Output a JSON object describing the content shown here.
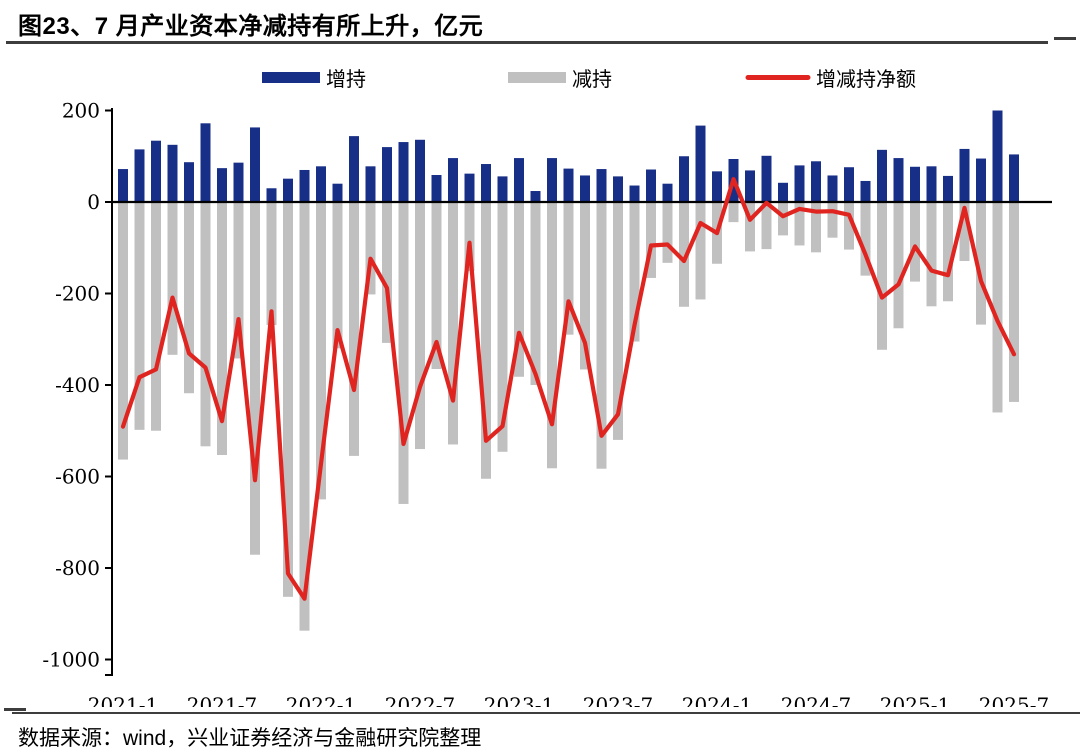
{
  "title": "图23、7 月产业资本净减持有所上升，亿元",
  "footer": {
    "source_text": "数据来源：wind，兴业证券经济与金融研究院整理"
  },
  "colors": {
    "increase_bar": "#182F87",
    "decrease_bar": "#C0C0C0",
    "net_line": "#E02521",
    "axis": "#000000",
    "rule": "#3d3d3d"
  },
  "legend": [
    {
      "label": "增持",
      "type": "bar",
      "color": "#182F87"
    },
    {
      "label": "减持",
      "type": "bar",
      "color": "#C0C0C0"
    },
    {
      "label": "增减持净额",
      "type": "line",
      "color": "#E02521"
    }
  ],
  "chart_data": {
    "type": "bar",
    "subtype": "bar+line combo, monthly",
    "unit": "亿元",
    "title": "图23、7 月产业资本净减持有所上升，亿元",
    "xlabel": "",
    "ylabel": "",
    "ylim": [
      -1000,
      200
    ],
    "y_ticks": [
      200,
      0,
      -200,
      -400,
      -600,
      -800,
      -1000
    ],
    "x_tick_labels": [
      "2021-1",
      "2021-7",
      "2022-1",
      "2022-7",
      "2023-1",
      "2023-7",
      "2024-1",
      "2024-7",
      "2025-1",
      "2025-7"
    ],
    "grid": false,
    "legend_position": "top",
    "x": [
      "2021-1",
      "2021-2",
      "2021-3",
      "2021-4",
      "2021-5",
      "2021-6",
      "2021-7",
      "2021-8",
      "2021-9",
      "2021-10",
      "2021-11",
      "2021-12",
      "2022-1",
      "2022-2",
      "2022-3",
      "2022-4",
      "2022-5",
      "2022-6",
      "2022-7",
      "2022-8",
      "2022-9",
      "2022-10",
      "2022-11",
      "2022-12",
      "2023-1",
      "2023-2",
      "2023-3",
      "2023-4",
      "2023-5",
      "2023-6",
      "2023-7",
      "2023-8",
      "2023-9",
      "2023-10",
      "2023-11",
      "2023-12",
      "2024-1",
      "2024-2",
      "2024-3",
      "2024-4",
      "2024-5",
      "2024-6",
      "2024-7",
      "2024-8",
      "2024-9",
      "2024-10",
      "2024-11",
      "2024-12",
      "2025-1",
      "2025-2",
      "2025-3",
      "2025-4",
      "2025-5",
      "2025-6",
      "2025-7"
    ],
    "series": [
      {
        "name": "增持",
        "type": "bar",
        "color": "#182F87",
        "values": [
          72,
          115,
          134,
          125,
          87,
          172,
          74,
          86,
          163,
          30,
          51,
          70,
          78,
          40,
          144,
          78,
          120,
          131,
          136,
          59,
          96,
          62,
          83,
          56,
          96,
          24,
          96,
          73,
          58,
          72,
          56,
          36,
          71,
          40,
          100,
          167,
          67,
          94,
          69,
          101,
          42,
          80,
          89,
          58,
          76,
          46,
          114,
          96,
          77,
          78,
          57,
          116,
          95,
          200,
          104
        ]
      },
      {
        "name": "减持",
        "type": "bar",
        "color": "#C0C0C0",
        "values": [
          -563,
          -498,
          -500,
          -334,
          -418,
          -534,
          -553,
          -342,
          -771,
          -269,
          -863,
          -937,
          -650,
          -320,
          -555,
          -202,
          -308,
          -660,
          -540,
          -365,
          -530,
          -151,
          -605,
          -546,
          -382,
          -400,
          -582,
          -290,
          -366,
          -583,
          -520,
          -305,
          -166,
          -133,
          -229,
          -213,
          -135,
          -44,
          -108,
          -103,
          -73,
          -95,
          -110,
          -78,
          -104,
          -161,
          -323,
          -276,
          -174,
          -228,
          -217,
          -129,
          -268,
          -460,
          -437
        ]
      },
      {
        "name": "增减持净额",
        "type": "line",
        "color": "#E02521",
        "values": [
          -491,
          -383,
          -366,
          -209,
          -331,
          -362,
          -479,
          -256,
          -608,
          -239,
          -812,
          -867,
          -572,
          -280,
          -411,
          -124,
          -188,
          -529,
          -404,
          -306,
          -434,
          -89,
          -522,
          -490,
          -286,
          -376,
          -486,
          -217,
          -308,
          -511,
          -464,
          -269,
          -95,
          -93,
          -129,
          -46,
          -68,
          50,
          -39,
          -2,
          -31,
          -15,
          -21,
          -20,
          -28,
          -115,
          -209,
          -180,
          -97,
          -150,
          -160,
          -13,
          -173,
          -260,
          -333
        ]
      }
    ]
  }
}
